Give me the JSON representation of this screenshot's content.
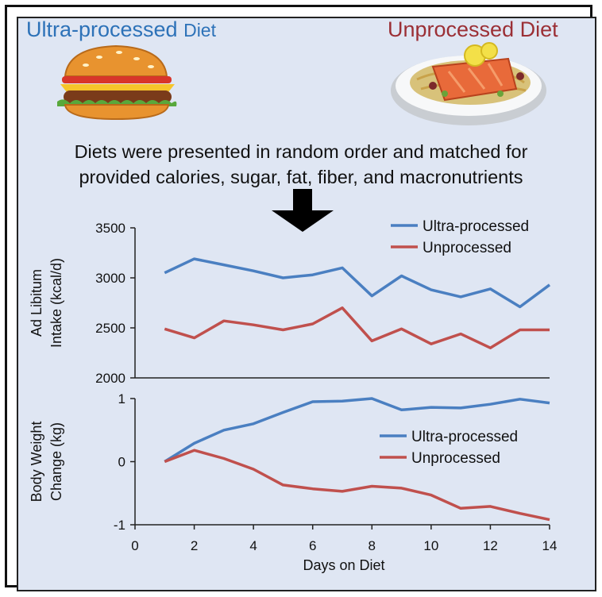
{
  "header": {
    "left_title_main": "Ultra-processed ",
    "left_title_small": "Diet",
    "right_title": "Unprocessed Diet"
  },
  "caption": {
    "line1": "Diets were presented in random order and matched for",
    "line2": "provided calories, sugar, fat, fiber, and macronutrients"
  },
  "icons": [
    "burger-icon",
    "salmon-plate-icon",
    "down-arrow-icon"
  ],
  "colors": {
    "ultra": "#4a7fc1",
    "unprocessed": "#c0504d",
    "left_title": "#2d72b8",
    "right_title": "#9b2f35"
  },
  "chart_data": [
    {
      "type": "line",
      "ylabel": [
        "Ad Libitum",
        "Intake (kcal/d)"
      ],
      "ylim": [
        2000,
        3500
      ],
      "yticks": [
        2000,
        2500,
        3000,
        3500
      ],
      "xlim": [
        0,
        14
      ],
      "legend": "top-right",
      "series": [
        {
          "name": "Ultra-processed",
          "x": [
            1,
            2,
            3,
            4,
            5,
            6,
            7,
            8,
            9,
            10,
            11,
            12,
            13,
            14
          ],
          "values": [
            3050,
            3190,
            3130,
            3070,
            3000,
            3030,
            3100,
            2820,
            3020,
            2880,
            2810,
            2890,
            2710,
            2930
          ]
        },
        {
          "name": "Unprocessed",
          "x": [
            1,
            2,
            3,
            4,
            5,
            6,
            7,
            8,
            9,
            10,
            11,
            12,
            13,
            14
          ],
          "values": [
            2490,
            2400,
            2570,
            2530,
            2480,
            2540,
            2700,
            2370,
            2490,
            2340,
            2440,
            2300,
            2480,
            2480
          ]
        }
      ]
    },
    {
      "type": "line",
      "ylabel": [
        "Body Weight",
        "Change (kg)"
      ],
      "xlabel": "Days on Diet",
      "ylim": [
        -1,
        1
      ],
      "yticks": [
        -1,
        0,
        1
      ],
      "xlim": [
        0,
        14
      ],
      "xticks": [
        0,
        2,
        4,
        6,
        8,
        10,
        12,
        14
      ],
      "legend": "right",
      "series": [
        {
          "name": "Ultra-processed",
          "x": [
            1,
            2,
            3,
            4,
            5,
            6,
            7,
            8,
            9,
            10,
            11,
            12,
            13,
            14
          ],
          "values": [
            0,
            0.29,
            0.5,
            0.6,
            0.78,
            0.95,
            0.96,
            1.0,
            0.82,
            0.86,
            0.85,
            0.91,
            0.99,
            0.93
          ]
        },
        {
          "name": "Unprocessed",
          "x": [
            1,
            2,
            3,
            4,
            5,
            6,
            7,
            8,
            9,
            10,
            11,
            12,
            13,
            14
          ],
          "values": [
            0,
            0.18,
            0.05,
            -0.12,
            -0.37,
            -0.43,
            -0.47,
            -0.39,
            -0.42,
            -0.53,
            -0.74,
            -0.71,
            -0.82,
            -0.92
          ]
        }
      ]
    }
  ]
}
